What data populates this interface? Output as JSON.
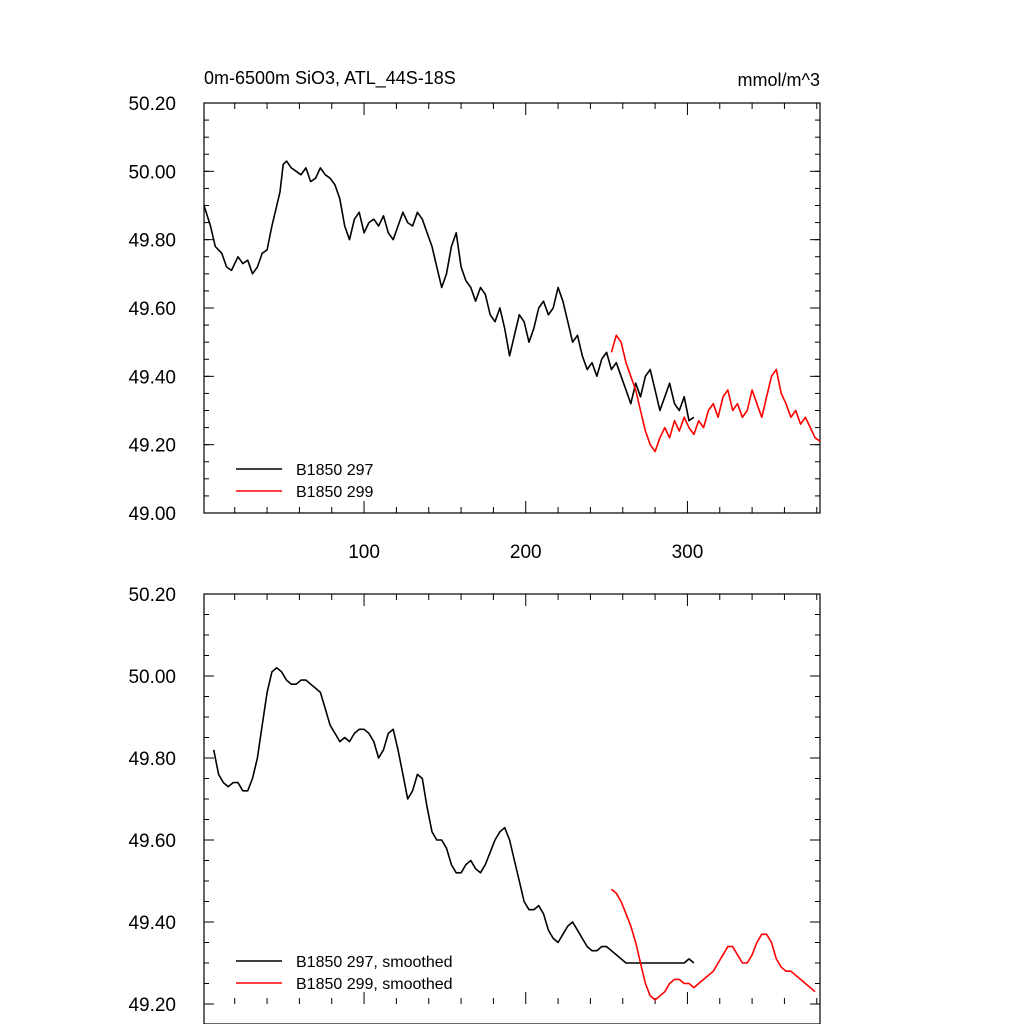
{
  "chart_data": [
    {
      "type": "line",
      "title": "0m-6500m SiO3, ATL_44S-18S",
      "units": "mmol/m^3",
      "xlim": [
        1,
        382
      ],
      "ylim": [
        49.0,
        50.2
      ],
      "x_tick_labels": [
        "100",
        "200",
        "300"
      ],
      "x_ticks": [
        100,
        200,
        300
      ],
      "y_tick_labels": [
        "49.00",
        "49.20",
        "49.40",
        "49.60",
        "49.80",
        "50.00",
        "50.20"
      ],
      "y_ticks": [
        49.0,
        49.2,
        49.4,
        49.6,
        49.8,
        50.0,
        50.2
      ],
      "grid": false,
      "legend": "bottom-left",
      "series": [
        {
          "name": "B1850 297",
          "color": "#000000",
          "x": [
            1,
            5,
            8,
            12,
            15,
            18,
            22,
            25,
            28,
            31,
            34,
            37,
            40,
            43,
            46,
            48,
            50,
            52,
            55,
            58,
            61,
            64,
            67,
            70,
            73,
            76,
            79,
            82,
            85,
            88,
            91,
            94,
            97,
            100,
            103,
            106,
            109,
            112,
            115,
            118,
            121,
            124,
            127,
            130,
            133,
            136,
            139,
            142,
            145,
            148,
            151,
            154,
            157,
            160,
            163,
            166,
            169,
            172,
            175,
            178,
            181,
            184,
            187,
            190,
            193,
            196,
            199,
            202,
            205,
            208,
            211,
            214,
            217,
            220,
            223,
            226,
            229,
            232,
            235,
            238,
            241,
            244,
            247,
            250,
            253,
            256,
            259,
            262,
            265,
            268,
            271,
            274,
            277,
            280,
            283,
            286,
            289,
            292,
            295,
            298,
            301,
            304
          ],
          "y": [
            49.9,
            49.84,
            49.78,
            49.76,
            49.72,
            49.71,
            49.75,
            49.73,
            49.74,
            49.7,
            49.72,
            49.76,
            49.77,
            49.84,
            49.9,
            49.94,
            50.02,
            50.03,
            50.01,
            50.0,
            49.99,
            50.01,
            49.97,
            49.98,
            50.01,
            49.99,
            49.98,
            49.96,
            49.92,
            49.84,
            49.8,
            49.86,
            49.88,
            49.82,
            49.85,
            49.86,
            49.84,
            49.87,
            49.82,
            49.8,
            49.84,
            49.88,
            49.85,
            49.84,
            49.88,
            49.86,
            49.82,
            49.78,
            49.72,
            49.66,
            49.7,
            49.78,
            49.82,
            49.72,
            49.68,
            49.66,
            49.62,
            49.66,
            49.64,
            49.58,
            49.56,
            49.6,
            49.54,
            49.46,
            49.52,
            49.58,
            49.56,
            49.5,
            49.54,
            49.6,
            49.62,
            49.58,
            49.6,
            49.66,
            49.62,
            49.56,
            49.5,
            49.52,
            49.46,
            49.42,
            49.44,
            49.4,
            49.45,
            49.47,
            49.42,
            49.44,
            49.4,
            49.36,
            49.32,
            49.38,
            49.34,
            49.4,
            49.42,
            49.36,
            49.3,
            49.34,
            49.38,
            49.32,
            49.3,
            49.34,
            49.27,
            49.28
          ]
        },
        {
          "name": "B1850 299",
          "color": "#ff0000",
          "x": [
            253,
            256,
            259,
            262,
            265,
            268,
            271,
            274,
            277,
            280,
            283,
            286,
            289,
            292,
            295,
            298,
            301,
            304,
            307,
            310,
            313,
            316,
            319,
            322,
            325,
            328,
            331,
            334,
            337,
            340,
            343,
            346,
            349,
            352,
            355,
            358,
            361,
            364,
            367,
            370,
            373,
            376,
            379,
            382
          ],
          "y": [
            49.47,
            49.52,
            49.5,
            49.44,
            49.4,
            49.36,
            49.3,
            49.24,
            49.2,
            49.18,
            49.22,
            49.25,
            49.22,
            49.27,
            49.24,
            49.28,
            49.25,
            49.23,
            49.27,
            49.25,
            49.3,
            49.32,
            49.28,
            49.34,
            49.36,
            49.3,
            49.32,
            49.28,
            49.3,
            49.36,
            49.32,
            49.28,
            49.34,
            49.4,
            49.42,
            49.35,
            49.32,
            49.28,
            49.3,
            49.26,
            49.28,
            49.25,
            49.22,
            49.21
          ]
        }
      ]
    },
    {
      "type": "line",
      "xlim": [
        1,
        382
      ],
      "ylim": [
        49.2,
        50.2
      ],
      "y_tick_labels": [
        "49.20",
        "49.40",
        "49.60",
        "49.80",
        "50.00",
        "50.20"
      ],
      "y_ticks": [
        49.2,
        49.4,
        49.6,
        49.8,
        50.0,
        50.2
      ],
      "x_ticks": [
        100,
        200,
        300
      ],
      "grid": false,
      "legend": "bottom-left",
      "series": [
        {
          "name": "B1850 297, smoothed",
          "color": "#000000",
          "x": [
            7,
            10,
            13,
            16,
            19,
            22,
            25,
            28,
            31,
            34,
            37,
            40,
            43,
            46,
            49,
            52,
            55,
            58,
            61,
            64,
            67,
            70,
            73,
            76,
            79,
            82,
            85,
            88,
            91,
            94,
            97,
            100,
            103,
            106,
            109,
            112,
            115,
            118,
            121,
            124,
            127,
            130,
            133,
            136,
            139,
            142,
            145,
            148,
            151,
            154,
            157,
            160,
            163,
            166,
            169,
            172,
            175,
            178,
            181,
            184,
            187,
            190,
            193,
            196,
            199,
            202,
            205,
            208,
            211,
            214,
            217,
            220,
            223,
            226,
            229,
            232,
            235,
            238,
            241,
            244,
            247,
            250,
            253,
            256,
            259,
            262,
            265,
            268,
            271,
            274,
            277,
            280,
            283,
            286,
            289,
            292,
            295,
            298,
            301,
            304
          ],
          "y": [
            49.82,
            49.76,
            49.74,
            49.73,
            49.74,
            49.74,
            49.72,
            49.72,
            49.75,
            49.8,
            49.88,
            49.96,
            50.01,
            50.02,
            50.01,
            49.99,
            49.98,
            49.98,
            49.99,
            49.99,
            49.98,
            49.97,
            49.96,
            49.92,
            49.88,
            49.86,
            49.84,
            49.85,
            49.84,
            49.86,
            49.87,
            49.87,
            49.86,
            49.84,
            49.8,
            49.82,
            49.86,
            49.87,
            49.82,
            49.76,
            49.7,
            49.72,
            49.76,
            49.75,
            49.68,
            49.62,
            49.6,
            49.6,
            49.58,
            49.54,
            49.52,
            49.52,
            49.54,
            49.55,
            49.53,
            49.52,
            49.54,
            49.57,
            49.6,
            49.62,
            49.63,
            49.6,
            49.55,
            49.5,
            49.45,
            49.43,
            49.43,
            49.44,
            49.42,
            49.38,
            49.36,
            49.35,
            49.37,
            49.39,
            49.4,
            49.38,
            49.36,
            49.34,
            49.33,
            49.33,
            49.34,
            49.34,
            49.33,
            49.32,
            49.31,
            49.3,
            49.3,
            49.3,
            49.3,
            49.3,
            49.3,
            49.3,
            49.3,
            49.3,
            49.3,
            49.3,
            49.3,
            49.3,
            49.31,
            49.3
          ]
        },
        {
          "name": "B1850 299, smoothed",
          "color": "#ff0000",
          "x": [
            253,
            256,
            259,
            262,
            265,
            268,
            271,
            274,
            277,
            280,
            283,
            286,
            289,
            292,
            295,
            298,
            301,
            304,
            307,
            310,
            313,
            316,
            319,
            322,
            325,
            328,
            331,
            334,
            337,
            340,
            343,
            346,
            349,
            352,
            355,
            358,
            361,
            364,
            367,
            370,
            373,
            376,
            379
          ],
          "y": [
            49.48,
            49.47,
            49.45,
            49.42,
            49.39,
            49.35,
            49.3,
            49.25,
            49.22,
            49.21,
            49.22,
            49.23,
            49.25,
            49.26,
            49.26,
            49.25,
            49.25,
            49.24,
            49.25,
            49.26,
            49.27,
            49.28,
            49.3,
            49.32,
            49.34,
            49.34,
            49.32,
            49.3,
            49.3,
            49.32,
            49.35,
            49.37,
            49.37,
            49.35,
            49.31,
            49.29,
            49.28,
            49.28,
            49.27,
            49.26,
            49.25,
            49.24,
            49.23
          ]
        }
      ]
    }
  ]
}
